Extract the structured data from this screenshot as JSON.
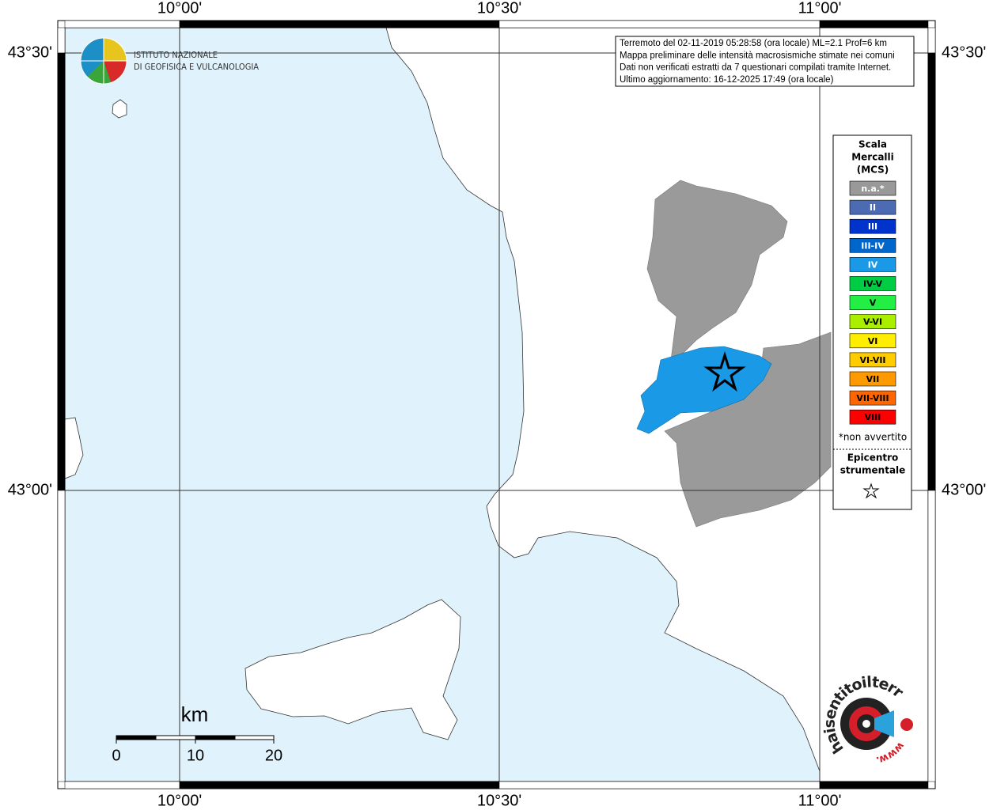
{
  "axis_labels": {
    "longitudes": [
      "10°00'",
      "10°30'",
      "11°00'"
    ],
    "latitudes": [
      "43°30'",
      "43°00'"
    ]
  },
  "logo": {
    "lines": [
      "ISTITUTO NAZIONALE",
      "DI GEOFISICA E VULCANOLOGIA"
    ]
  },
  "info_box": {
    "lines": [
      "Terremoto del 02-11-2019 05:28:58 (ora locale) ML=2.1 Prof=6 km",
      "Mappa preliminare delle intensità macrosismiche stimate nei comuni",
      "Dati non verificati estratti da 7 questionari compilati tramite Internet.",
      "Ultimo aggiornamento: 16-12-2025 17:49 (ora locale)"
    ]
  },
  "legend": {
    "title": [
      "Scala",
      "Mercalli",
      "(MCS)"
    ],
    "items": [
      {
        "label": "n.a.*",
        "color": "#999999"
      },
      {
        "label": "II",
        "color": "#4d6bb3"
      },
      {
        "label": "III",
        "color": "#0033cc"
      },
      {
        "label": "III-IV",
        "color": "#0066cc"
      },
      {
        "label": "IV",
        "color": "#1a99e6"
      },
      {
        "label": "IV-V",
        "color": "#00cc44"
      },
      {
        "label": "V",
        "color": "#22ee44"
      },
      {
        "label": "V-VI",
        "color": "#aaee00"
      },
      {
        "label": "VI",
        "color": "#ffee00"
      },
      {
        "label": "VI-VII",
        "color": "#ffcc00"
      },
      {
        "label": "VII",
        "color": "#ff9900"
      },
      {
        "label": "VII-VIII",
        "color": "#ff6600"
      },
      {
        "label": "VIII",
        "color": "#ff0000"
      }
    ],
    "note": "*non avvertito",
    "epicenter_title": [
      "Epicentro",
      "strumentale"
    ]
  },
  "scale_bar": {
    "unit": "km",
    "ticks": [
      0,
      10,
      20
    ]
  },
  "site_logo": {
    "text": "haisentitoilterremoto.it",
    "url_prefix": "www."
  }
}
